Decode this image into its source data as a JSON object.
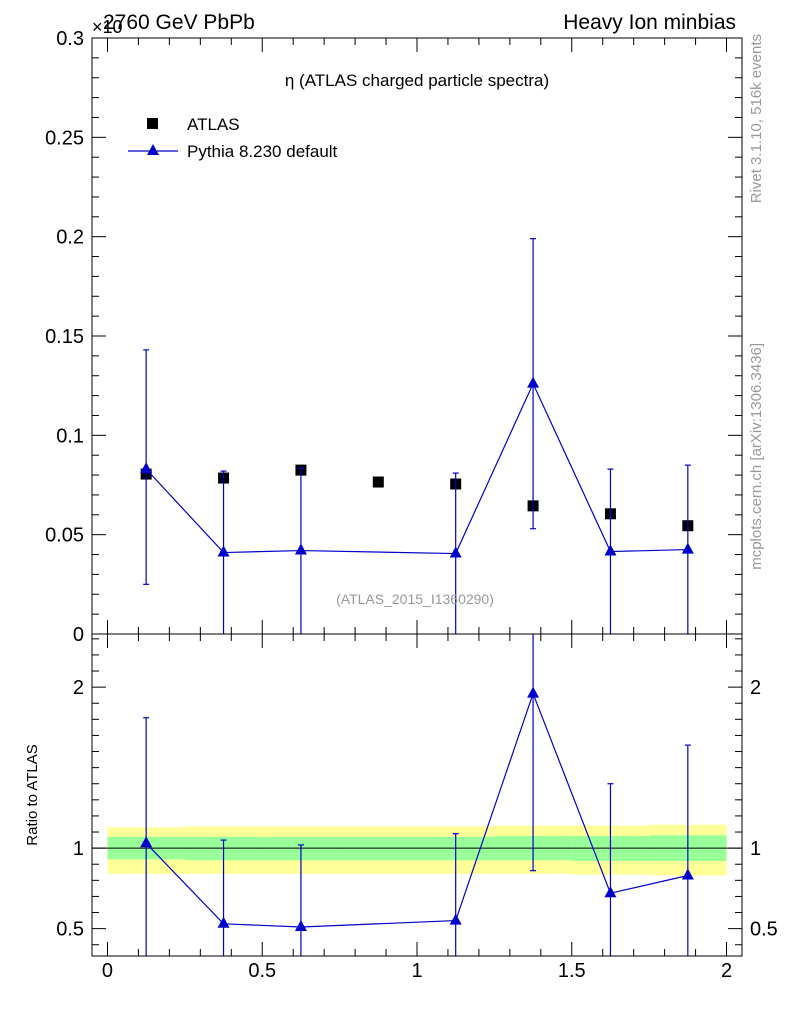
{
  "header": {
    "left": "2760 GeV PbPb",
    "right": "Heavy Ion minbias",
    "exponent": "×10"
  },
  "side": {
    "rivet": "Rivet 3.1.10,  516k events",
    "mcplots": "mcplots.cern.ch [arXiv:1306.3436]"
  },
  "colors": {
    "mc": "#0000cc",
    "data": "#000000",
    "band_inner": "#99ff99",
    "band_outer": "#ffff99",
    "watermark": "#999999"
  },
  "chart_data": [
    {
      "type": "scatter",
      "title": "η (ATLAS charged particle spectra)",
      "watermark": "(ATLAS_2015_I1360290)",
      "ylim": [
        0,
        0.3
      ],
      "xlim": [
        -0.05,
        2.05
      ],
      "y_ticks": [
        {
          "v": 0,
          "label": "0"
        },
        {
          "v": 0.05,
          "label": "0.05"
        },
        {
          "v": 0.1,
          "label": "0.1"
        },
        {
          "v": 0.15,
          "label": "0.15"
        },
        {
          "v": 0.2,
          "label": "0.2"
        },
        {
          "v": 0.25,
          "label": "0.25"
        },
        {
          "v": 0.3,
          "label": "0.3"
        }
      ],
      "legend": [
        {
          "name": "ATLAS",
          "marker": "square"
        },
        {
          "name": "Pythia 8.230 default",
          "marker": "triangle"
        }
      ],
      "series": [
        {
          "name": "ATLAS",
          "x": [
            0.125,
            0.375,
            0.625,
            0.875,
            1.125,
            1.375,
            1.625,
            1.875
          ],
          "values": [
            0.0805,
            0.0785,
            0.0825,
            0.0765,
            0.0755,
            0.0645,
            0.0605,
            0.0545
          ]
        },
        {
          "name": "Pythia 8.230 default",
          "x": [
            0.125,
            0.375,
            0.625,
            1.125,
            1.375,
            1.625,
            1.875
          ],
          "values": [
            0.083,
            0.041,
            0.042,
            0.0405,
            0.126,
            0.0415,
            0.0425
          ],
          "err_lo": [
            0.058,
            0.041,
            0.042,
            0.0405,
            0.073,
            0.0415,
            0.0425
          ],
          "err_hi": [
            0.06,
            0.041,
            0.0415,
            0.0405,
            0.073,
            0.0415,
            0.0425
          ]
        }
      ]
    },
    {
      "type": "line",
      "ylabel": "Ratio to ATLAS",
      "ylim": [
        0.33,
        2.33
      ],
      "xlim": [
        -0.05,
        2.05
      ],
      "y_ticks": [
        {
          "v": 0.5,
          "label": "0.5"
        },
        {
          "v": 1,
          "label": "1"
        },
        {
          "v": 2,
          "label": "2"
        }
      ],
      "x_ticks": [
        {
          "v": 0,
          "label": "0"
        },
        {
          "v": 0.5,
          "label": "0.5"
        },
        {
          "v": 1,
          "label": "1"
        },
        {
          "v": 1.5,
          "label": "1.5"
        },
        {
          "v": 2,
          "label": "2"
        }
      ],
      "bands": {
        "x": [
          0,
          0.25,
          0.5,
          0.75,
          1.0,
          1.25,
          1.5,
          1.75,
          2.0
        ],
        "inner": [
          [
            0.93,
            1.07
          ],
          [
            0.925,
            1.07
          ],
          [
            0.925,
            1.07
          ],
          [
            0.925,
            1.07
          ],
          [
            0.925,
            1.07
          ],
          [
            0.925,
            1.075
          ],
          [
            0.92,
            1.075
          ],
          [
            0.92,
            1.08
          ]
        ],
        "outer": [
          [
            0.84,
            1.13
          ],
          [
            0.84,
            1.135
          ],
          [
            0.84,
            1.135
          ],
          [
            0.84,
            1.135
          ],
          [
            0.84,
            1.135
          ],
          [
            0.84,
            1.14
          ],
          [
            0.835,
            1.14
          ],
          [
            0.83,
            1.145
          ]
        ]
      },
      "series": [
        {
          "name": "Pythia 8.230 default",
          "x": [
            0.125,
            0.375,
            0.625,
            1.125,
            1.375,
            1.625,
            1.875
          ],
          "values": [
            1.03,
            0.53,
            0.51,
            0.55,
            1.96,
            0.72,
            0.83
          ],
          "err_lo": [
            0.72,
            0.53,
            0.51,
            0.55,
            1.1,
            0.72,
            0.83
          ],
          "err_hi": [
            0.78,
            0.52,
            0.51,
            0.54,
            1.16,
            0.68,
            0.81
          ]
        }
      ]
    }
  ]
}
